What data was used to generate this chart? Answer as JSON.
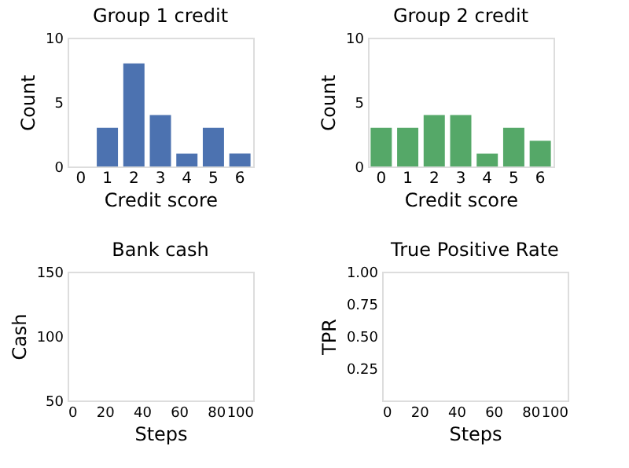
{
  "chart_data": [
    {
      "type": "bar",
      "title": "Group 1 credit",
      "xlabel": "Credit score",
      "ylabel": "Count",
      "categories": [
        "0",
        "1",
        "2",
        "3",
        "4",
        "5",
        "6"
      ],
      "series": [
        {
          "color": "#4c72b0",
          "values": [
            0,
            3,
            8,
            4,
            1,
            3,
            1
          ]
        }
      ],
      "ylim": [
        0,
        10
      ],
      "yticks": [
        0,
        5,
        10
      ],
      "grid": false
    },
    {
      "type": "bar",
      "title": "Group 2 credit",
      "xlabel": "Credit score",
      "ylabel": "Count",
      "categories": [
        "0",
        "1",
        "2",
        "3",
        "4",
        "5",
        "6"
      ],
      "series": [
        {
          "color": "#55a868",
          "values": [
            3,
            3,
            4,
            4,
            1,
            3,
            2
          ]
        }
      ],
      "ylim": [
        0,
        10
      ],
      "yticks": [
        0,
        5,
        10
      ],
      "grid": false
    },
    {
      "type": "line",
      "title": "Bank cash",
      "xlabel": "Steps",
      "ylabel": "Cash",
      "xlim": [
        0,
        100
      ],
      "xticks": [
        0,
        20,
        40,
        60,
        80,
        100
      ],
      "ylim": [
        50,
        150
      ],
      "yticks": [
        50,
        100,
        150
      ],
      "grid": false
    },
    {
      "type": "line",
      "title": "True Positive Rate",
      "xlabel": "Steps",
      "ylabel": "TPR",
      "xlim": [
        0,
        100
      ],
      "xticks": [
        0,
        20,
        40,
        60,
        80,
        100
      ],
      "ylim": [
        0,
        1
      ],
      "yticks": [
        {
          "value": 0.25,
          "label": "0.25"
        },
        {
          "value": 0.5,
          "label": "0.50"
        },
        {
          "value": 0.75,
          "label": "0.75"
        },
        {
          "value": 1,
          "label": "1.00"
        }
      ],
      "grid": false
    }
  ]
}
